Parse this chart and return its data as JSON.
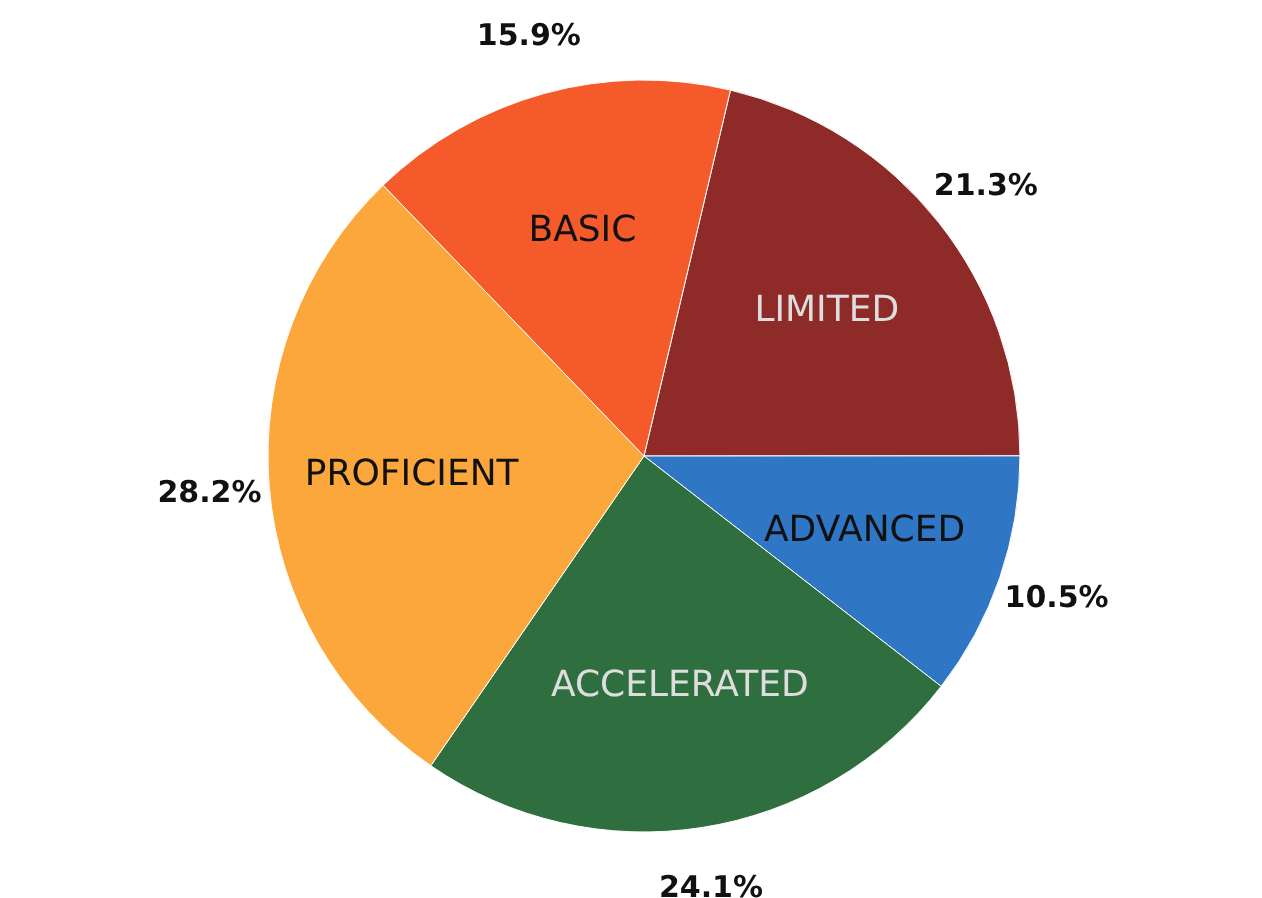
{
  "chart_data": {
    "type": "pie",
    "categories": [
      "LIMITED",
      "ADVANCED",
      "ACCELERATED",
      "PROFICIENT",
      "BASIC"
    ],
    "values": [
      21.3,
      10.5,
      24.1,
      28.2,
      15.9
    ],
    "value_labels": [
      "21.3%",
      "10.5%",
      "24.1%",
      "28.2%",
      "15.9%"
    ],
    "colors": [
      "#8e2a27",
      "#2f76c4",
      "#2f6e3e",
      "#fba73c",
      "#f55a2b"
    ]
  }
}
